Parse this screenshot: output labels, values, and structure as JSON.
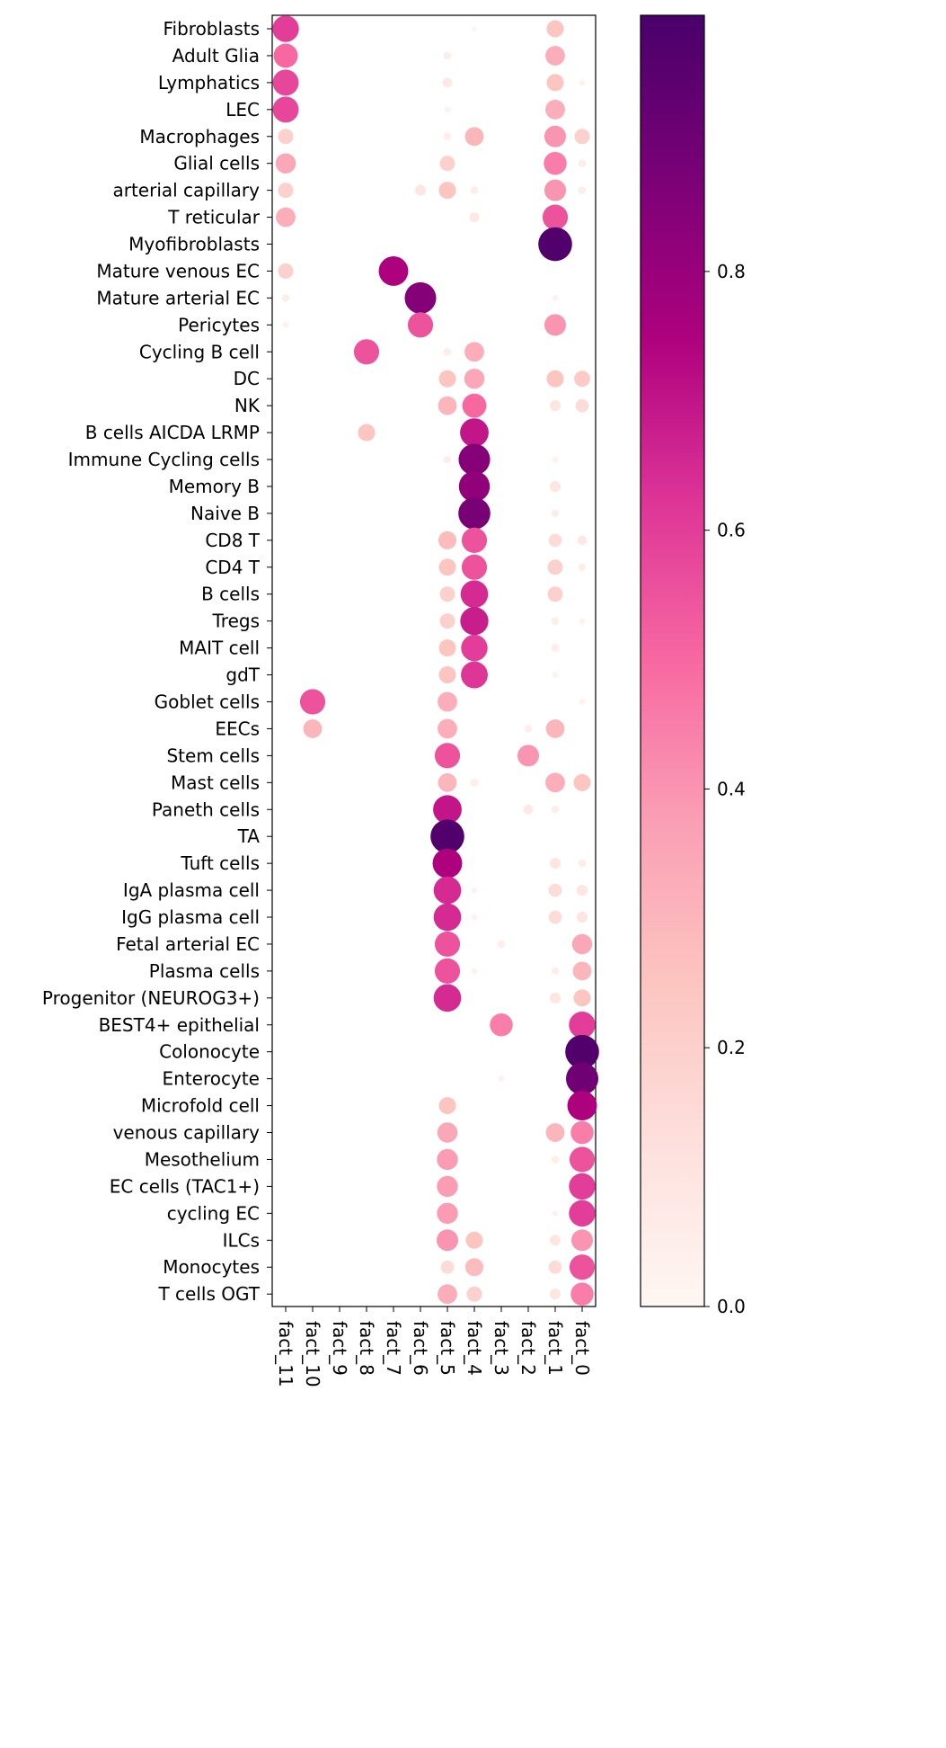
{
  "chart_data": {
    "type": "dotplot",
    "title": "",
    "xlabel": "",
    "ylabel": "",
    "rows": [
      "Fibroblasts",
      "Adult Glia",
      "Lymphatics",
      "LEC",
      "Macrophages",
      "Glial cells",
      "arterial capillary",
      "T reticular",
      "Myofibroblasts",
      "Mature venous EC",
      "Mature arterial EC",
      "Pericytes",
      "Cycling B cell",
      "DC",
      "NK",
      "B cells AICDA LRMP",
      "Immune Cycling cells",
      "Memory B",
      "Naive B",
      "CD8 T",
      "CD4 T",
      "B cells",
      "Tregs",
      "MAIT cell",
      "gdT",
      "Goblet cells",
      "EECs",
      "Stem cells",
      "Mast cells",
      "Paneth cells",
      "TA",
      "Tuft cells",
      "IgA plasma cell",
      "IgG plasma cell",
      "Fetal arterial EC",
      "Plasma cells",
      "Progenitor (NEUROG3+)",
      "BEST4+ epithelial",
      "Colonocyte",
      "Enterocyte",
      "Microfold cell",
      "venous capillary",
      "Mesothelium",
      "EC cells (TAC1+)",
      "cycling EC",
      "ILCs",
      "Monocytes",
      "T cells OGT"
    ],
    "columns": [
      "fact_11",
      "fact_10",
      "fact_9",
      "fact_8",
      "fact_7",
      "fact_6",
      "fact_5",
      "fact_4",
      "fact_3",
      "fact_2",
      "fact_1",
      "fact_0"
    ],
    "points": [
      {
        "row": "Fibroblasts",
        "col": "fact_11",
        "value": 0.6
      },
      {
        "row": "Fibroblasts",
        "col": "fact_4",
        "value": 0.02
      },
      {
        "row": "Fibroblasts",
        "col": "fact_1",
        "value": 0.25
      },
      {
        "row": "Adult Glia",
        "col": "fact_11",
        "value": 0.5
      },
      {
        "row": "Adult Glia",
        "col": "fact_5",
        "value": 0.05
      },
      {
        "row": "Adult Glia",
        "col": "fact_1",
        "value": 0.33
      },
      {
        "row": "Lymphatics",
        "col": "fact_11",
        "value": 0.58
      },
      {
        "row": "Lymphatics",
        "col": "fact_5",
        "value": 0.08
      },
      {
        "row": "Lymphatics",
        "col": "fact_1",
        "value": 0.25
      },
      {
        "row": "Lymphatics",
        "col": "fact_0",
        "value": 0.03
      },
      {
        "row": "LEC",
        "col": "fact_11",
        "value": 0.58
      },
      {
        "row": "LEC",
        "col": "fact_5",
        "value": 0.03
      },
      {
        "row": "LEC",
        "col": "fact_1",
        "value": 0.33
      },
      {
        "row": "Macrophages",
        "col": "fact_11",
        "value": 0.2
      },
      {
        "row": "Macrophages",
        "col": "fact_5",
        "value": 0.05
      },
      {
        "row": "Macrophages",
        "col": "fact_4",
        "value": 0.3
      },
      {
        "row": "Macrophages",
        "col": "fact_1",
        "value": 0.4
      },
      {
        "row": "Macrophages",
        "col": "fact_0",
        "value": 0.2
      },
      {
        "row": "Glial cells",
        "col": "fact_11",
        "value": 0.35
      },
      {
        "row": "Glial cells",
        "col": "fact_5",
        "value": 0.2
      },
      {
        "row": "Glial cells",
        "col": "fact_1",
        "value": 0.45
      },
      {
        "row": "Glial cells",
        "col": "fact_0",
        "value": 0.05
      },
      {
        "row": "arterial capillary",
        "col": "fact_11",
        "value": 0.2
      },
      {
        "row": "arterial capillary",
        "col": "fact_6",
        "value": 0.1
      },
      {
        "row": "arterial capillary",
        "col": "fact_5",
        "value": 0.25
      },
      {
        "row": "arterial capillary",
        "col": "fact_4",
        "value": 0.05
      },
      {
        "row": "arterial capillary",
        "col": "fact_1",
        "value": 0.4
      },
      {
        "row": "arterial capillary",
        "col": "fact_0",
        "value": 0.05
      },
      {
        "row": "T reticular",
        "col": "fact_11",
        "value": 0.33
      },
      {
        "row": "T reticular",
        "col": "fact_4",
        "value": 0.08
      },
      {
        "row": "T reticular",
        "col": "fact_1",
        "value": 0.55
      },
      {
        "row": "Myofibroblasts",
        "col": "fact_1",
        "value": 0.98
      },
      {
        "row": "Mature venous EC",
        "col": "fact_11",
        "value": 0.2
      },
      {
        "row": "Mature venous EC",
        "col": "fact_7",
        "value": 0.75
      },
      {
        "row": "Mature arterial EC",
        "col": "fact_11",
        "value": 0.05
      },
      {
        "row": "Mature arterial EC",
        "col": "fact_6",
        "value": 0.85
      },
      {
        "row": "Mature arterial EC",
        "col": "fact_1",
        "value": 0.03
      },
      {
        "row": "Pericytes",
        "col": "fact_11",
        "value": 0.03
      },
      {
        "row": "Pericytes",
        "col": "fact_6",
        "value": 0.55
      },
      {
        "row": "Pericytes",
        "col": "fact_1",
        "value": 0.4
      },
      {
        "row": "Cycling B cell",
        "col": "fact_8",
        "value": 0.55
      },
      {
        "row": "Cycling B cell",
        "col": "fact_5",
        "value": 0.05
      },
      {
        "row": "Cycling B cell",
        "col": "fact_4",
        "value": 0.33
      },
      {
        "row": "DC",
        "col": "fact_5",
        "value": 0.25
      },
      {
        "row": "DC",
        "col": "fact_4",
        "value": 0.35
      },
      {
        "row": "DC",
        "col": "fact_1",
        "value": 0.25
      },
      {
        "row": "DC",
        "col": "fact_0",
        "value": 0.22
      },
      {
        "row": "NK",
        "col": "fact_5",
        "value": 0.3
      },
      {
        "row": "NK",
        "col": "fact_4",
        "value": 0.5
      },
      {
        "row": "NK",
        "col": "fact_1",
        "value": 0.1
      },
      {
        "row": "NK",
        "col": "fact_0",
        "value": 0.15
      },
      {
        "row": "B cells AICDA LRMP",
        "col": "fact_8",
        "value": 0.25
      },
      {
        "row": "B cells AICDA LRMP",
        "col": "fact_4",
        "value": 0.7
      },
      {
        "row": "Immune Cycling cells",
        "col": "fact_5",
        "value": 0.05
      },
      {
        "row": "Immune Cycling cells",
        "col": "fact_4",
        "value": 0.85
      },
      {
        "row": "Immune Cycling cells",
        "col": "fact_1",
        "value": 0.03
      },
      {
        "row": "Memory B",
        "col": "fact_4",
        "value": 0.82
      },
      {
        "row": "Memory B",
        "col": "fact_1",
        "value": 0.1
      },
      {
        "row": "Naive B",
        "col": "fact_4",
        "value": 0.88
      },
      {
        "row": "Naive B",
        "col": "fact_1",
        "value": 0.05
      },
      {
        "row": "CD8 T",
        "col": "fact_5",
        "value": 0.28
      },
      {
        "row": "CD8 T",
        "col": "fact_4",
        "value": 0.55
      },
      {
        "row": "CD8 T",
        "col": "fact_1",
        "value": 0.15
      },
      {
        "row": "CD8 T",
        "col": "fact_0",
        "value": 0.08
      },
      {
        "row": "CD4 T",
        "col": "fact_5",
        "value": 0.25
      },
      {
        "row": "CD4 T",
        "col": "fact_4",
        "value": 0.55
      },
      {
        "row": "CD4 T",
        "col": "fact_1",
        "value": 0.2
      },
      {
        "row": "CD4 T",
        "col": "fact_0",
        "value": 0.05
      },
      {
        "row": "B cells",
        "col": "fact_5",
        "value": 0.2
      },
      {
        "row": "B cells",
        "col": "fact_4",
        "value": 0.65
      },
      {
        "row": "B cells",
        "col": "fact_1",
        "value": 0.2
      },
      {
        "row": "Tregs",
        "col": "fact_5",
        "value": 0.2
      },
      {
        "row": "Tregs",
        "col": "fact_4",
        "value": 0.68
      },
      {
        "row": "Tregs",
        "col": "fact_1",
        "value": 0.05
      },
      {
        "row": "Tregs",
        "col": "fact_0",
        "value": 0.03
      },
      {
        "row": "MAIT cell",
        "col": "fact_5",
        "value": 0.25
      },
      {
        "row": "MAIT cell",
        "col": "fact_4",
        "value": 0.6
      },
      {
        "row": "MAIT cell",
        "col": "fact_1",
        "value": 0.05
      },
      {
        "row": "gdT",
        "col": "fact_5",
        "value": 0.25
      },
      {
        "row": "gdT",
        "col": "fact_4",
        "value": 0.62
      },
      {
        "row": "gdT",
        "col": "fact_1",
        "value": 0.03
      },
      {
        "row": "Goblet cells",
        "col": "fact_10",
        "value": 0.55
      },
      {
        "row": "Goblet cells",
        "col": "fact_5",
        "value": 0.33
      },
      {
        "row": "Goblet cells",
        "col": "fact_0",
        "value": 0.03
      },
      {
        "row": "EECs",
        "col": "fact_10",
        "value": 0.3
      },
      {
        "row": "EECs",
        "col": "fact_5",
        "value": 0.33
      },
      {
        "row": "EECs",
        "col": "fact_2",
        "value": 0.05
      },
      {
        "row": "EECs",
        "col": "fact_1",
        "value": 0.3
      },
      {
        "row": "Stem cells",
        "col": "fact_5",
        "value": 0.55
      },
      {
        "row": "Stem cells",
        "col": "fact_2",
        "value": 0.4
      },
      {
        "row": "Mast cells",
        "col": "fact_5",
        "value": 0.3
      },
      {
        "row": "Mast cells",
        "col": "fact_4",
        "value": 0.05
      },
      {
        "row": "Mast cells",
        "col": "fact_1",
        "value": 0.33
      },
      {
        "row": "Mast cells",
        "col": "fact_0",
        "value": 0.25
      },
      {
        "row": "Paneth cells",
        "col": "fact_5",
        "value": 0.7
      },
      {
        "row": "Paneth cells",
        "col": "fact_2",
        "value": 0.08
      },
      {
        "row": "Paneth cells",
        "col": "fact_1",
        "value": 0.05
      },
      {
        "row": "TA",
        "col": "fact_5",
        "value": 0.98
      },
      {
        "row": "Tuft cells",
        "col": "fact_5",
        "value": 0.75
      },
      {
        "row": "Tuft cells",
        "col": "fact_1",
        "value": 0.1
      },
      {
        "row": "Tuft cells",
        "col": "fact_0",
        "value": 0.05
      },
      {
        "row": "IgA plasma cell",
        "col": "fact_5",
        "value": 0.65
      },
      {
        "row": "IgA plasma cell",
        "col": "fact_4",
        "value": 0.03
      },
      {
        "row": "IgA plasma cell",
        "col": "fact_1",
        "value": 0.15
      },
      {
        "row": "IgA plasma cell",
        "col": "fact_0",
        "value": 0.1
      },
      {
        "row": "IgG plasma cell",
        "col": "fact_5",
        "value": 0.65
      },
      {
        "row": "IgG plasma cell",
        "col": "fact_4",
        "value": 0.03
      },
      {
        "row": "IgG plasma cell",
        "col": "fact_1",
        "value": 0.15
      },
      {
        "row": "IgG plasma cell",
        "col": "fact_0",
        "value": 0.1
      },
      {
        "row": "Fetal arterial EC",
        "col": "fact_5",
        "value": 0.55
      },
      {
        "row": "Fetal arterial EC",
        "col": "fact_3",
        "value": 0.05
      },
      {
        "row": "Fetal arterial EC",
        "col": "fact_0",
        "value": 0.35
      },
      {
        "row": "Plasma cells",
        "col": "fact_5",
        "value": 0.55
      },
      {
        "row": "Plasma cells",
        "col": "fact_4",
        "value": 0.03
      },
      {
        "row": "Plasma cells",
        "col": "fact_1",
        "value": 0.05
      },
      {
        "row": "Plasma cells",
        "col": "fact_0",
        "value": 0.3
      },
      {
        "row": "Progenitor (NEUROG3+)",
        "col": "fact_5",
        "value": 0.65
      },
      {
        "row": "Progenitor (NEUROG3+)",
        "col": "fact_1",
        "value": 0.1
      },
      {
        "row": "Progenitor (NEUROG3+)",
        "col": "fact_0",
        "value": 0.25
      },
      {
        "row": "BEST4+ epithelial",
        "col": "fact_3",
        "value": 0.45
      },
      {
        "row": "BEST4+ epithelial",
        "col": "fact_0",
        "value": 0.6
      },
      {
        "row": "Colonocyte",
        "col": "fact_0",
        "value": 0.98
      },
      {
        "row": "Enterocyte",
        "col": "fact_3",
        "value": 0.03
      },
      {
        "row": "Enterocyte",
        "col": "fact_0",
        "value": 0.9
      },
      {
        "row": "Microfold cell",
        "col": "fact_5",
        "value": 0.25
      },
      {
        "row": "Microfold cell",
        "col": "fact_0",
        "value": 0.75
      },
      {
        "row": "venous capillary",
        "col": "fact_5",
        "value": 0.35
      },
      {
        "row": "venous capillary",
        "col": "fact_1",
        "value": 0.3
      },
      {
        "row": "venous capillary",
        "col": "fact_0",
        "value": 0.45
      },
      {
        "row": "Mesothelium",
        "col": "fact_5",
        "value": 0.38
      },
      {
        "row": "Mesothelium",
        "col": "fact_1",
        "value": 0.05
      },
      {
        "row": "Mesothelium",
        "col": "fact_0",
        "value": 0.55
      },
      {
        "row": "EC cells (TAC1+)",
        "col": "fact_5",
        "value": 0.38
      },
      {
        "row": "EC cells (TAC1+)",
        "col": "fact_0",
        "value": 0.6
      },
      {
        "row": "cycling EC",
        "col": "fact_5",
        "value": 0.38
      },
      {
        "row": "cycling EC",
        "col": "fact_1",
        "value": 0.03
      },
      {
        "row": "cycling EC",
        "col": "fact_0",
        "value": 0.6
      },
      {
        "row": "ILCs",
        "col": "fact_5",
        "value": 0.4
      },
      {
        "row": "ILCs",
        "col": "fact_4",
        "value": 0.25
      },
      {
        "row": "ILCs",
        "col": "fact_1",
        "value": 0.1
      },
      {
        "row": "ILCs",
        "col": "fact_0",
        "value": 0.4
      },
      {
        "row": "Monocytes",
        "col": "fact_5",
        "value": 0.15
      },
      {
        "row": "Monocytes",
        "col": "fact_4",
        "value": 0.28
      },
      {
        "row": "Monocytes",
        "col": "fact_1",
        "value": 0.15
      },
      {
        "row": "Monocytes",
        "col": "fact_0",
        "value": 0.55
      },
      {
        "row": "T cells OGT",
        "col": "fact_5",
        "value": 0.33
      },
      {
        "row": "T cells OGT",
        "col": "fact_4",
        "value": 0.2
      },
      {
        "row": "T cells OGT",
        "col": "fact_1",
        "value": 0.1
      },
      {
        "row": "T cells OGT",
        "col": "fact_0",
        "value": 0.45
      }
    ],
    "color_scale": {
      "range": [
        0,
        1
      ],
      "colormap": "RdPu",
      "stops": [
        "#fff7f3",
        "#fde0dd",
        "#fcc5c0",
        "#fa9fb5",
        "#f768a1",
        "#dd3497",
        "#ae017e",
        "#7a0177",
        "#49006a"
      ],
      "ticks": [
        0.0,
        0.2,
        0.4,
        0.6,
        0.8
      ],
      "tick_labels": [
        "0.0",
        "0.2",
        "0.4",
        "0.6",
        "0.8"
      ]
    },
    "size_encodes": "value",
    "grid": false,
    "legend": "colorbar-right"
  }
}
